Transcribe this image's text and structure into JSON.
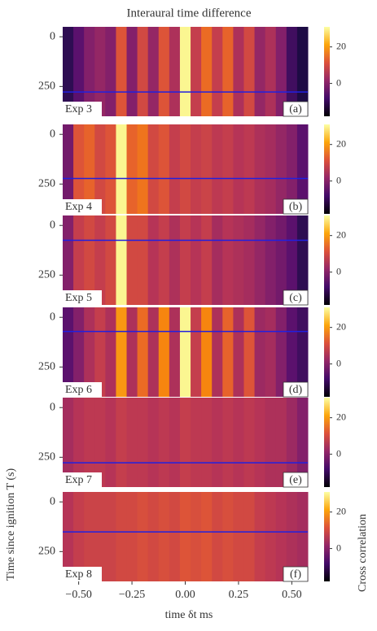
{
  "chart_data": {
    "type": "heatmap",
    "title": "Interaural time difference",
    "xlabel": "time δt ms",
    "ylabel": "Time since ignition T (s)",
    "colorbar_label": "Cross correlation",
    "colormap": "inferno",
    "marker_color": "#2020e0",
    "x": [
      -0.55,
      -0.5,
      -0.45,
      -0.4,
      -0.35,
      -0.3,
      -0.25,
      -0.2,
      -0.15,
      -0.1,
      -0.05,
      0,
      0.05,
      0.1,
      0.15,
      0.2,
      0.25,
      0.3,
      0.35,
      0.4,
      0.45,
      0.5,
      0.55
    ],
    "xlim": [
      -0.575,
      0.575
    ],
    "xticks": [
      {
        "value": -0.5,
        "label": "−0.50"
      },
      {
        "value": -0.25,
        "label": "−0.25"
      },
      {
        "value": 0,
        "label": "0.00"
      },
      {
        "value": 0.25,
        "label": "0.25"
      },
      {
        "value": 0.5,
        "label": "0.50"
      }
    ],
    "ylim": [
      -50,
      400
    ],
    "yticks": [
      0,
      250
    ],
    "clim": [
      -18,
      31
    ],
    "cticks": [
      0,
      20
    ],
    "panels": [
      {
        "label": "Exp 3",
        "tag": "(a)",
        "marker": 278,
        "values": [
          -10,
          -5,
          0,
          2,
          0,
          12,
          0,
          10,
          2,
          12,
          5,
          30,
          8,
          15,
          8,
          14,
          5,
          10,
          2,
          5,
          0,
          -8,
          -12
        ]
      },
      {
        "label": "Exp 4",
        "tag": "(b)",
        "marker": 222,
        "values": [
          -2,
          12,
          14,
          10,
          12,
          30,
          14,
          16,
          10,
          12,
          8,
          10,
          8,
          9,
          7,
          8,
          6,
          7,
          5,
          4,
          2,
          0,
          -5
        ]
      },
      {
        "label": "Exp 5",
        "tag": "(c)",
        "marker": 75,
        "values": [
          0,
          8,
          10,
          8,
          10,
          30,
          10,
          10,
          6,
          8,
          5,
          8,
          6,
          8,
          4,
          6,
          5,
          4,
          2,
          0,
          -2,
          -5,
          -10
        ]
      },
      {
        "label": "Exp 6",
        "tag": "(d)",
        "marker": 71,
        "values": [
          -5,
          0,
          5,
          8,
          5,
          20,
          5,
          15,
          5,
          18,
          5,
          30,
          8,
          18,
          5,
          14,
          5,
          12,
          3,
          4,
          0,
          -5,
          -8
        ]
      },
      {
        "label": "Exp 7",
        "tag": "(e)",
        "marker": 278,
        "values": [
          4,
          6,
          7,
          7,
          6,
          8,
          7,
          7,
          6,
          7,
          6,
          8,
          7,
          7,
          6,
          7,
          6,
          7,
          6,
          5,
          5,
          3,
          0
        ]
      },
      {
        "label": "Exp 8",
        "tag": "(f)",
        "marker": 151,
        "values": [
          6,
          8,
          9,
          9,
          9,
          10,
          10,
          11,
          10,
          11,
          10,
          12,
          11,
          12,
          10,
          11,
          10,
          10,
          8,
          7,
          6,
          5,
          4
        ]
      }
    ]
  }
}
